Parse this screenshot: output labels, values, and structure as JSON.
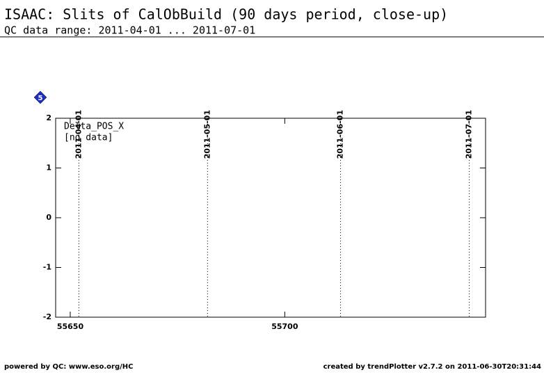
{
  "chart_data": {
    "type": "scatter",
    "title": "ISAAC: Slits of CalObBuild (90 days period, close-up)",
    "subtitle": "QC data range: 2011-04-01 ... 2011-07-01",
    "badge": "5",
    "panel_label": "Delta_POS_X",
    "note": "[no data]",
    "x": [],
    "values": [],
    "xlim": [
      55646.6,
      55746.8
    ],
    "xticks": [
      55650,
      55700
    ],
    "ylim": [
      -2,
      2
    ],
    "yticks": [
      -2,
      -1,
      0,
      1,
      2
    ],
    "date_markers": [
      {
        "value": 55652,
        "label": "2011-04-01"
      },
      {
        "value": 55682,
        "label": "2011-05-01"
      },
      {
        "value": 55713,
        "label": "2011-06-01"
      },
      {
        "value": 55743,
        "label": "2011-07-01"
      }
    ],
    "footer_left": "powered by QC: www.eso.org/HC",
    "footer_right": "created by trendPlotter v2.7.2 on 2011-06-30T20:31:44"
  }
}
